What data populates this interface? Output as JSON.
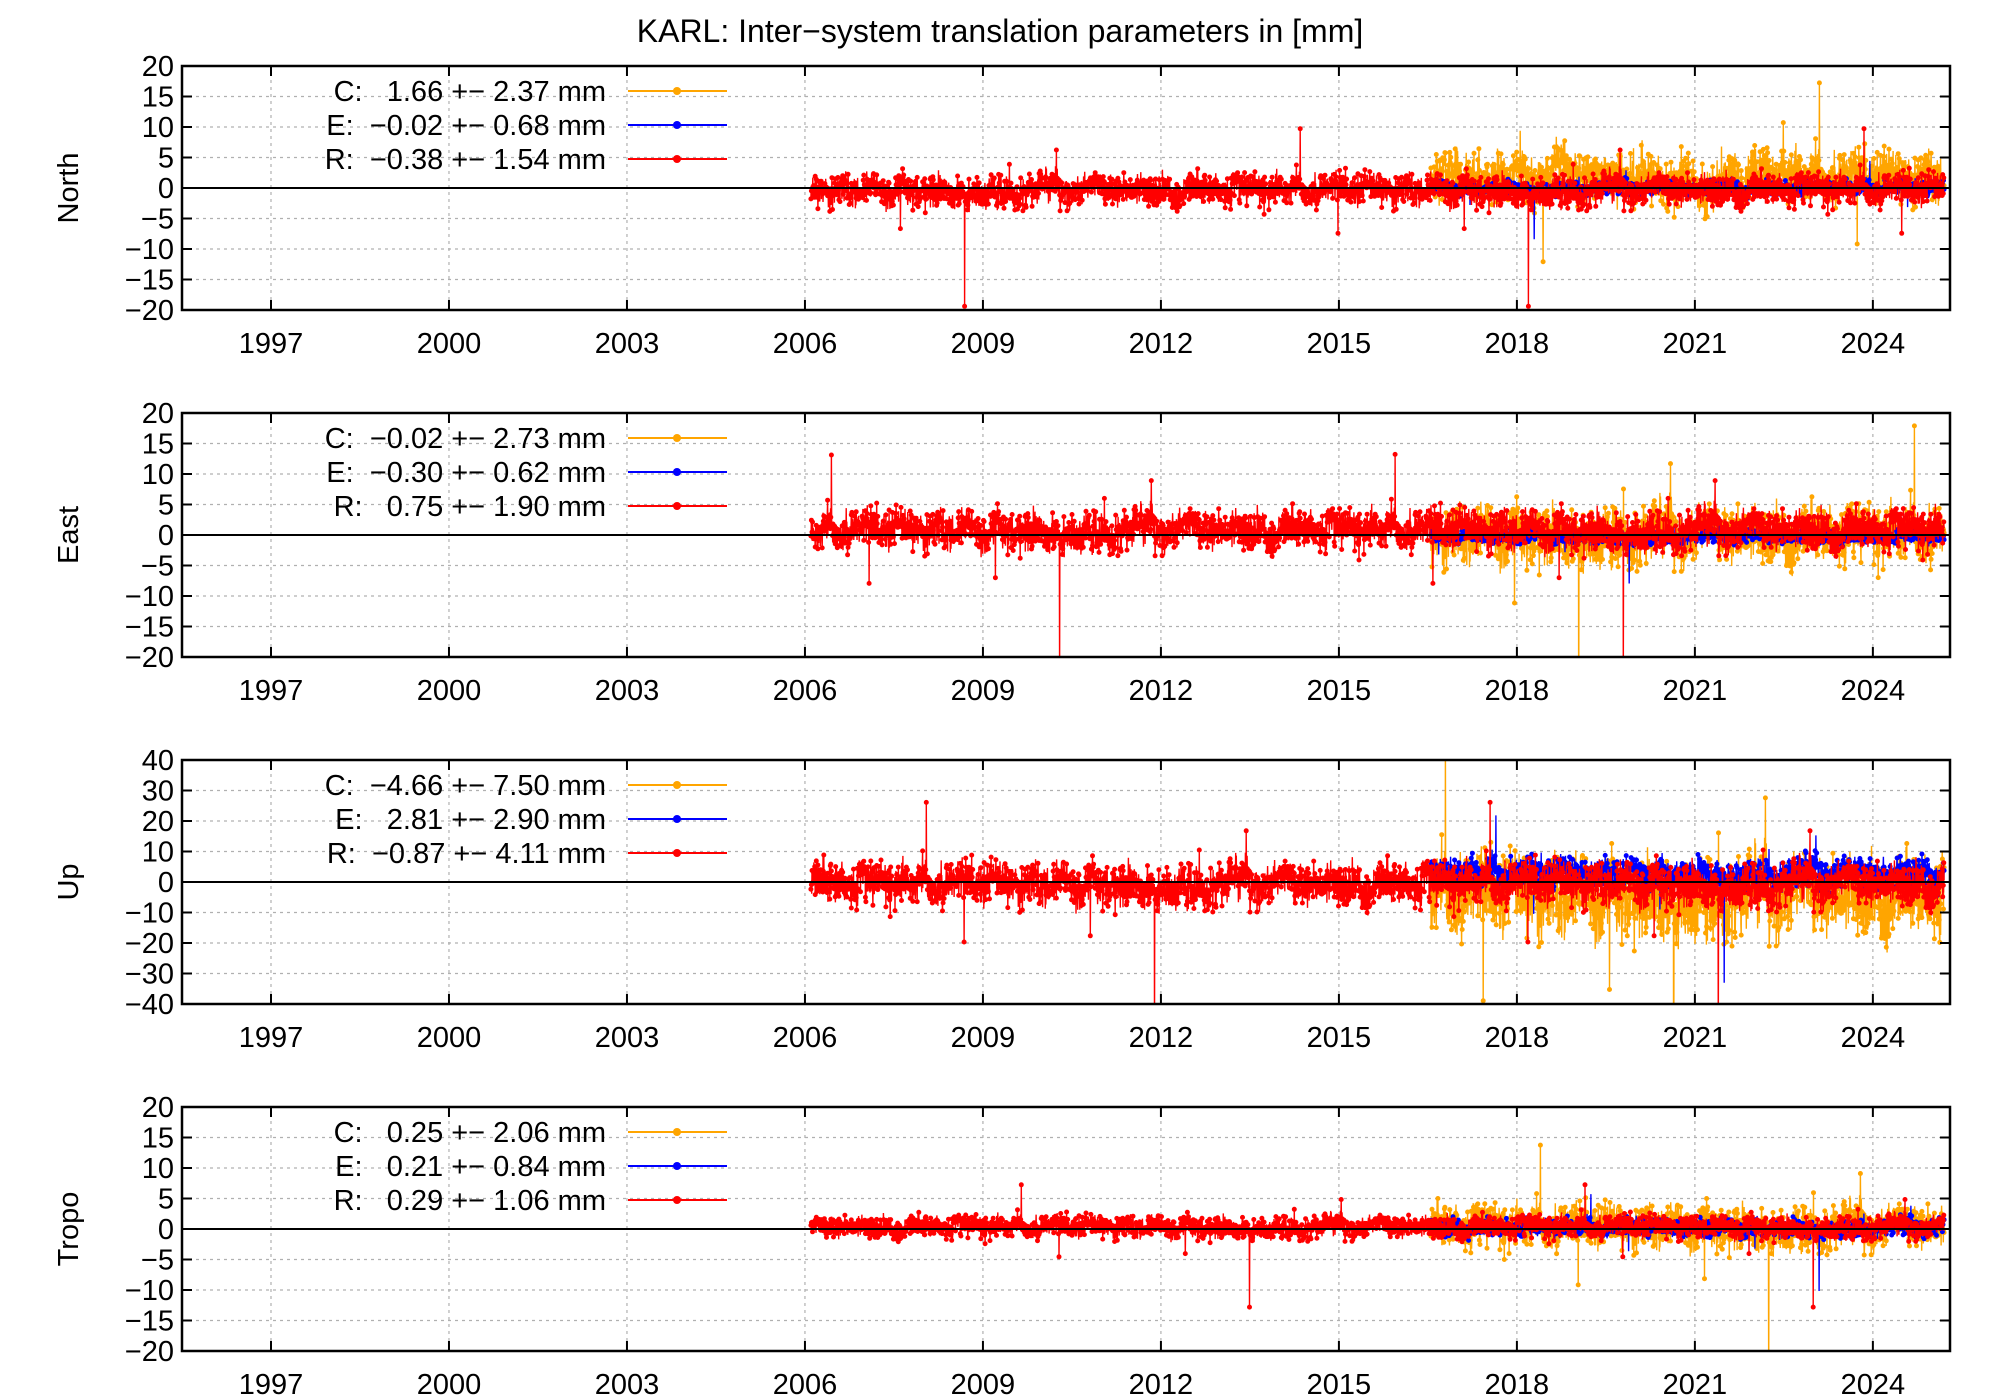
{
  "chart_data": {
    "type": "line",
    "title": "KARL: Inter−system translation parameters in [mm]",
    "xlim": [
      1995.5,
      2025.3
    ],
    "x_ticks": [
      "1997",
      "2000",
      "2003",
      "2006",
      "2009",
      "2012",
      "2015",
      "2018",
      "2021",
      "2024"
    ],
    "grid": true,
    "legend_position": "top-left",
    "colors": {
      "C": "#ffa500",
      "E": "#0000ff",
      "R": "#ff0000",
      "zero_line": "#000000"
    },
    "panels": [
      {
        "ylabel": "North",
        "ylim": [
          -20,
          20
        ],
        "y_ticks": [
          "20",
          "15",
          "10",
          "5",
          "0",
          "−5",
          "−10",
          "−15",
          "−20"
        ],
        "series": [
          {
            "name": "C",
            "legend": "C:   1.66 +− 2.37 mm",
            "start": 2016.55,
            "end": 2025.2,
            "mean": 1.66,
            "sigma": 2.37
          },
          {
            "name": "E",
            "legend": "E:  −0.02 +− 0.68 mm",
            "start": 2016.55,
            "end": 2025.2,
            "mean": -0.02,
            "sigma": 0.68
          },
          {
            "name": "R",
            "legend": "R:  −0.38 +− 1.54 mm",
            "start": 2006.1,
            "end": 2025.2,
            "mean": -0.38,
            "sigma": 1.54
          }
        ]
      },
      {
        "ylabel": "East",
        "ylim": [
          -20,
          20
        ],
        "y_ticks": [
          "20",
          "15",
          "10",
          "5",
          "0",
          "−5",
          "−10",
          "−15",
          "−20"
        ],
        "series": [
          {
            "name": "C",
            "legend": "C:  −0.02 +− 2.73 mm",
            "start": 2016.55,
            "end": 2025.2,
            "mean": -0.02,
            "sigma": 2.73
          },
          {
            "name": "E",
            "legend": "E:  −0.30 +− 0.62 mm",
            "start": 2016.55,
            "end": 2025.2,
            "mean": -0.3,
            "sigma": 0.62
          },
          {
            "name": "R",
            "legend": "R:   0.75 +− 1.90 mm",
            "start": 2006.1,
            "end": 2025.2,
            "mean": 0.75,
            "sigma": 1.9
          }
        ]
      },
      {
        "ylabel": "Up",
        "ylim": [
          -40,
          40
        ],
        "y_ticks": [
          "40",
          "30",
          "20",
          "10",
          "0",
          "−10",
          "−20",
          "−30",
          "−40"
        ],
        "series": [
          {
            "name": "C",
            "legend": "C:  −4.66 +− 7.50 mm",
            "start": 2016.55,
            "end": 2025.2,
            "mean": -4.66,
            "sigma": 7.5
          },
          {
            "name": "E",
            "legend": "E:   2.81 +− 2.90 mm",
            "start": 2016.55,
            "end": 2025.2,
            "mean": 2.81,
            "sigma": 2.9
          },
          {
            "name": "R",
            "legend": "R:  −0.87 +− 4.11 mm",
            "start": 2006.1,
            "end": 2025.2,
            "mean": -0.87,
            "sigma": 4.11
          }
        ]
      },
      {
        "ylabel": "Tropo",
        "ylim": [
          -20,
          20
        ],
        "y_ticks": [
          "20",
          "15",
          "10",
          "5",
          "0",
          "−5",
          "−10",
          "−15",
          "−20"
        ],
        "series": [
          {
            "name": "C",
            "legend": "C:   0.25 +− 2.06 mm",
            "start": 2016.55,
            "end": 2025.2,
            "mean": 0.25,
            "sigma": 2.06
          },
          {
            "name": "E",
            "legend": "E:   0.21 +− 0.84 mm",
            "start": 2016.55,
            "end": 2025.2,
            "mean": 0.21,
            "sigma": 0.84
          },
          {
            "name": "R",
            "legend": "R:   0.29 +− 1.06 mm",
            "start": 2006.1,
            "end": 2025.2,
            "mean": 0.29,
            "sigma": 1.06
          }
        ]
      }
    ]
  }
}
